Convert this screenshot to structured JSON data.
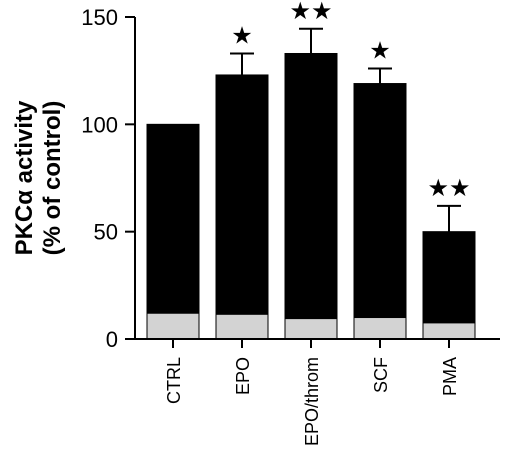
{
  "chart_data": {
    "type": "bar",
    "ylabel_lines": [
      "PKCα activity",
      "(% of control)"
    ],
    "xlabel": "",
    "ylim": [
      0,
      150
    ],
    "yticks": [
      0,
      50,
      100,
      150
    ],
    "grid": false,
    "categories": [
      "CTRL",
      "EPO",
      "EPO/throm",
      "SCF",
      "PMA"
    ],
    "series": [
      {
        "values": [
          100,
          123,
          133,
          119,
          50
        ],
        "color": "#000000"
      },
      {
        "values": [
          12,
          11.5,
          9.5,
          10,
          7.5
        ],
        "color": "#d3d3d3"
      }
    ],
    "error_bars": [
      null,
      10,
      11.5,
      7,
      12
    ],
    "annotations": [
      "",
      "★",
      "★★",
      "★",
      "★★"
    ]
  }
}
